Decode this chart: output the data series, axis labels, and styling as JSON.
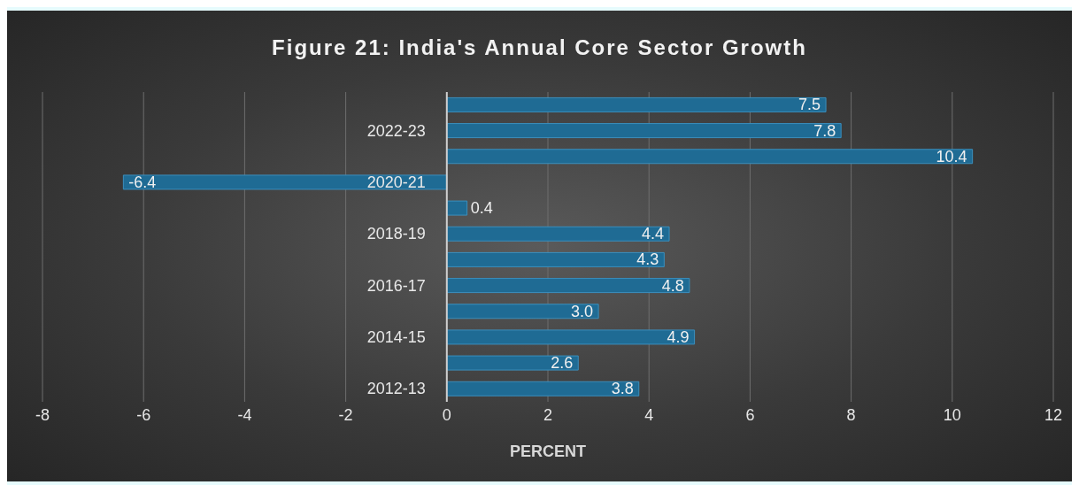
{
  "chart_data": {
    "type": "bar",
    "orientation": "horizontal",
    "title": "Figure 21: India's Annual Core Sector Growth",
    "xlabel": "PERCENT",
    "categories": [
      null,
      "2022-23",
      null,
      "2020-21",
      null,
      "2018-19",
      null,
      "2016-17",
      null,
      "2014-15",
      null,
      "2012-13"
    ],
    "values": [
      7.5,
      7.8,
      10.4,
      -6.4,
      0.4,
      4.4,
      4.3,
      4.8,
      3.0,
      4.9,
      2.6,
      3.8
    ],
    "value_labels": [
      "7.5",
      "7.8",
      "10.4",
      "-6.4",
      "0.4",
      "4.4",
      "4.3",
      "4.8",
      "3.0",
      "4.9",
      "2.6",
      "3.8"
    ],
    "color": "#1f6b94",
    "xlim": [
      -8,
      12
    ],
    "xticks": [
      -8,
      -6,
      -4,
      -2,
      0,
      2,
      4,
      6,
      8,
      10,
      12
    ],
    "grid": "x",
    "legend": false
  }
}
